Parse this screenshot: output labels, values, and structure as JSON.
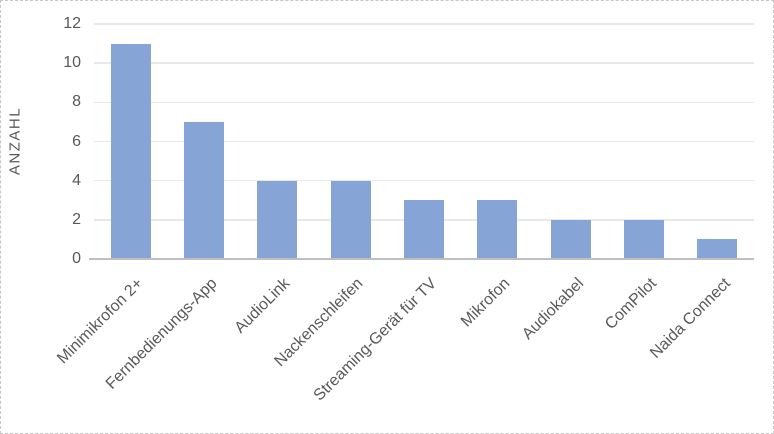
{
  "chart_data": {
    "type": "bar",
    "categories": [
      "Minimikrofon 2+",
      "Fernbedienungs-App",
      "AudioLink",
      "Nackenschleifen",
      "Streaming-Gerät für TV",
      "Mikrofon",
      "Audiokabel",
      "ComPilot",
      "Naida Connect"
    ],
    "values": [
      11,
      7,
      4,
      4,
      3,
      3,
      2,
      2,
      1
    ],
    "title": "",
    "xlabel": "",
    "ylabel": "ANZAHL",
    "ylim": [
      0,
      12
    ],
    "yticks": [
      0,
      2,
      4,
      6,
      8,
      10,
      12
    ],
    "grid": "horizontal",
    "legend": "none"
  },
  "colors": {
    "bar": "#86A4D5",
    "gridline": "#E8E8E8",
    "axis_line": "#BFBFBF",
    "tick_text": "#595959",
    "axis_title_text": "#595959",
    "figure_border": "#C6C6C6",
    "background": "#FFFFFF"
  }
}
